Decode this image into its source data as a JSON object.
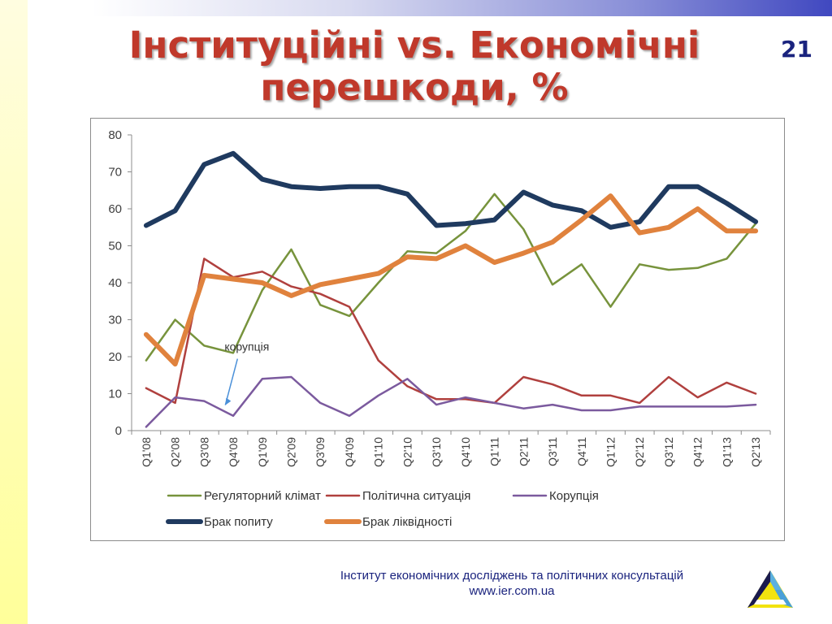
{
  "slide": {
    "title_line1": "Інституційні vs. Економічні",
    "title_line2": "перешкоди, %",
    "number": "21"
  },
  "footer": {
    "org": "Інститут економічних досліджень та політичних консультацій",
    "url": "www.ier.com.ua"
  },
  "colors": {
    "title": "#c0392b",
    "accent_blue": "#1a237e"
  },
  "chart_data": {
    "type": "line",
    "categories": [
      "Q1'08",
      "Q2'08",
      "Q3'08",
      "Q4'08",
      "Q1'09",
      "Q2'09",
      "Q3'09",
      "Q4'09",
      "Q1'10",
      "Q2'10",
      "Q3'10",
      "Q4'10",
      "Q1'11",
      "Q2'11",
      "Q3'11",
      "Q4'11",
      "Q1'12",
      "Q2'12",
      "Q3'12",
      "Q4'12",
      "Q1'13",
      "Q2'13"
    ],
    "ylim": [
      0,
      80
    ],
    "yticks": [
      0,
      10,
      20,
      30,
      40,
      50,
      60,
      70,
      80
    ],
    "grid": false,
    "legend_position": "bottom",
    "series": [
      {
        "name": "Регуляторний клімат",
        "color": "#77933c",
        "width": 2.5,
        "values": [
          19,
          30,
          23,
          21,
          38,
          49,
          34,
          31,
          40,
          48.5,
          48,
          54,
          64,
          54.5,
          39.5,
          45,
          33.5,
          45,
          43.5,
          44,
          46.5,
          56
        ]
      },
      {
        "name": "Політична ситуація",
        "color": "#b0403e",
        "width": 2.5,
        "values": [
          11.5,
          7.5,
          46.5,
          41.5,
          43,
          39,
          37,
          33.5,
          19,
          12,
          8.5,
          8.5,
          7.5,
          14.5,
          12.5,
          9.5,
          9.5,
          7.5,
          14.5,
          9,
          13,
          10
        ]
      },
      {
        "name": "Корупція",
        "color": "#7b5a9e",
        "width": 2.5,
        "values": [
          1,
          9,
          8,
          4,
          14,
          14.5,
          7.5,
          4,
          9.5,
          14,
          7,
          9,
          7.5,
          6,
          7,
          5.5,
          5.5,
          6.5,
          6.5,
          6.5,
          6.5,
          7
        ]
      },
      {
        "name": "Брак попиту",
        "color": "#1f3a5f",
        "width": 6,
        "values": [
          55.5,
          59.5,
          72,
          75,
          68,
          66,
          65.5,
          66,
          66,
          64,
          55.5,
          56,
          57,
          64.5,
          61,
          59.5,
          55,
          56.5,
          66,
          66,
          61.5,
          56.5
        ]
      },
      {
        "name": "Брак ліквідності",
        "color": "#e0823d",
        "width": 6,
        "values": [
          26,
          18,
          42,
          41,
          40,
          36.5,
          39.5,
          41,
          42.5,
          47,
          46.5,
          50,
          45.5,
          48,
          51,
          57,
          63.5,
          53.5,
          55,
          60,
          54,
          54
        ]
      }
    ],
    "annotations": [
      {
        "text": "корупція",
        "target_series": "Корупція",
        "target_category": "Q3'08"
      }
    ]
  }
}
